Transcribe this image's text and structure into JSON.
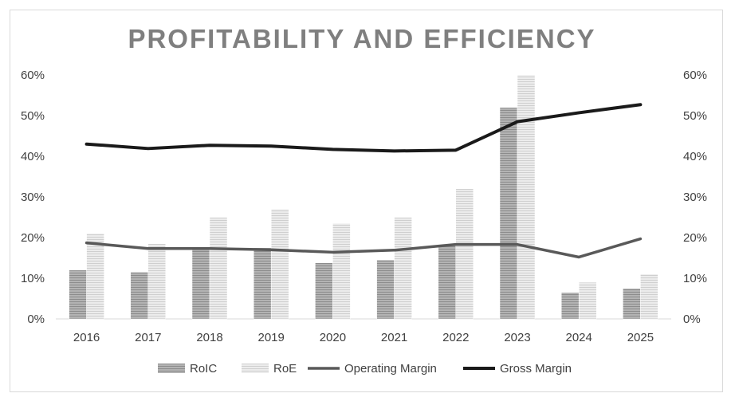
{
  "chart_data": {
    "type": "bar",
    "title": "PROFITABILITY AND EFFICIENCY",
    "categories": [
      "2016",
      "2017",
      "2018",
      "2019",
      "2020",
      "2021",
      "2022",
      "2023",
      "2024",
      "2025"
    ],
    "y_ticks": [
      "0%",
      "10%",
      "20%",
      "30%",
      "40%",
      "50%",
      "60%"
    ],
    "y2_ticks": [
      "0%",
      "10%",
      "20%",
      "30%",
      "40%",
      "50%",
      "60%"
    ],
    "ylim": [
      0,
      60
    ],
    "y2lim": [
      0,
      60
    ],
    "grid": false,
    "legend_position": "bottom",
    "series": [
      {
        "name": "RoIC",
        "type": "bar",
        "axis": "left",
        "color": "#a6a6a6",
        "values": [
          12.0,
          11.5,
          17.0,
          17.5,
          13.8,
          14.5,
          18.0,
          52.0,
          6.5,
          7.5
        ]
      },
      {
        "name": "RoE",
        "type": "bar",
        "axis": "left",
        "color": "#e0e0e0",
        "values": [
          21.0,
          18.5,
          25.0,
          27.0,
          23.5,
          25.0,
          32.0,
          60.0,
          9.0,
          11.0
        ]
      },
      {
        "name": "Operating Margin",
        "type": "line",
        "axis": "right",
        "color": "#595959",
        "values": [
          18.7,
          17.3,
          17.3,
          17.0,
          16.4,
          16.9,
          18.3,
          18.3,
          15.2,
          19.7
        ]
      },
      {
        "name": "Gross Margin",
        "type": "line",
        "axis": "right",
        "color": "#1a1a1a",
        "values": [
          43.0,
          41.9,
          42.7,
          42.5,
          41.7,
          41.3,
          41.5,
          48.5,
          50.7,
          52.7
        ]
      }
    ]
  }
}
